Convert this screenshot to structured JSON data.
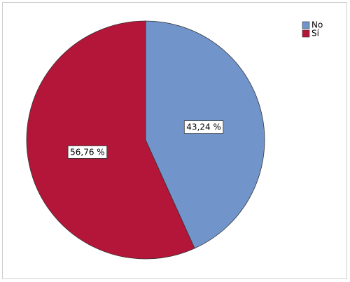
{
  "chart_data": {
    "type": "pie",
    "categories": [
      "No",
      "Sí"
    ],
    "values": [
      43.24,
      56.76
    ],
    "value_labels": [
      "43,24 %",
      "56,76 %"
    ],
    "colors": [
      "#7195cb",
      "#b41639"
    ],
    "legend": "top-right"
  }
}
